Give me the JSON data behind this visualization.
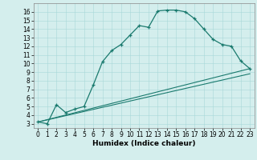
{
  "xlabel": "Humidex (Indice chaleur)",
  "bg_color": "#d4eeed",
  "line_color": "#1a7a6e",
  "xlim": [
    -0.5,
    23.5
  ],
  "ylim": [
    2.5,
    17.0
  ],
  "xticks": [
    0,
    1,
    2,
    3,
    4,
    5,
    6,
    7,
    8,
    9,
    10,
    11,
    12,
    13,
    14,
    15,
    16,
    17,
    18,
    19,
    20,
    21,
    22,
    23
  ],
  "yticks": [
    3,
    4,
    5,
    6,
    7,
    8,
    9,
    10,
    11,
    12,
    13,
    14,
    15,
    16
  ],
  "line1_x": [
    0,
    1,
    2,
    3,
    4,
    5,
    6,
    7,
    8,
    9,
    10,
    11,
    12,
    13,
    14,
    15,
    16,
    17,
    18,
    19,
    20,
    21,
    22,
    23
  ],
  "line1_y": [
    3.2,
    3.0,
    5.2,
    4.3,
    4.7,
    5.0,
    7.5,
    10.2,
    11.5,
    12.2,
    13.3,
    14.4,
    14.2,
    16.1,
    16.2,
    16.2,
    16.0,
    15.2,
    14.0,
    12.8,
    12.2,
    12.0,
    10.3,
    9.4
  ],
  "line2_x": [
    0,
    23
  ],
  "line2_y": [
    3.2,
    9.4
  ],
  "line3_x": [
    0,
    23
  ],
  "line3_y": [
    3.2,
    8.8
  ],
  "xlabel_fontsize": 6.5,
  "tick_fontsize": 5.5
}
